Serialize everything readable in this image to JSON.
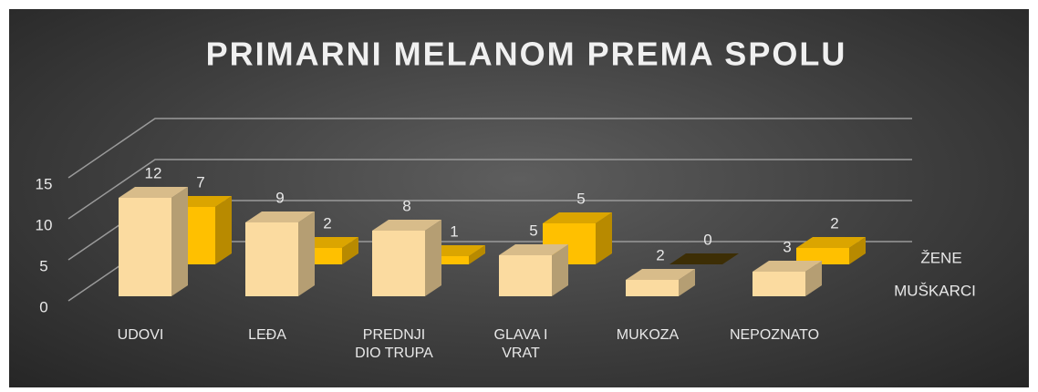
{
  "chart_data": {
    "type": "bar3d",
    "title": "PRIMARNI MELANOM PREMA SPOLU",
    "categories": [
      "UDOVI",
      "LEĐA",
      "PREDNJI DIO TRUPA",
      "GLAVA I VRAT",
      "MUKOZA",
      "NEPOZNATO"
    ],
    "series": [
      {
        "name": "MUŠKARCI",
        "color": "#fbdba0",
        "values": [
          12,
          9,
          8,
          5,
          2,
          3
        ]
      },
      {
        "name": "ŽENE",
        "color": "#ffc000",
        "values": [
          7,
          2,
          1,
          5,
          0,
          2
        ]
      }
    ],
    "ylim": [
      0,
      15
    ],
    "yticks": [
      0,
      5,
      10,
      15
    ],
    "grid": true
  }
}
